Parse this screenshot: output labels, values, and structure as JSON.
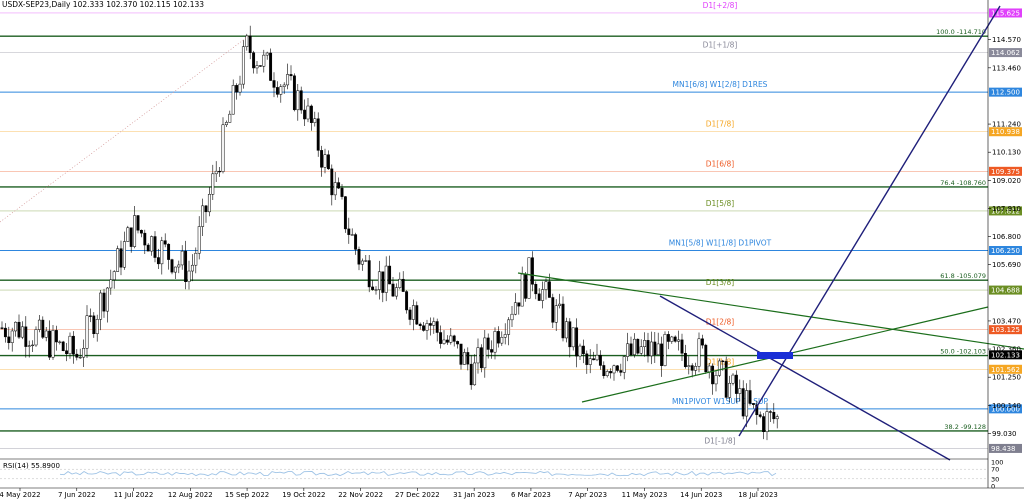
{
  "header": {
    "symbol_line": "USDX-SEP23,Daily  102.333 102.370 102.115 102.133"
  },
  "rsi": {
    "label": "RSI(14) 55.8900",
    "scale": [
      "100",
      "70",
      "30",
      "0"
    ]
  },
  "chart_data": {
    "type": "candlestick",
    "symbol": "USDX-SEP23",
    "timeframe": "Daily",
    "ohlc_last": {
      "open": 102.333,
      "high": 102.37,
      "low": 102.115,
      "close": 102.133
    },
    "ylim": [
      98.1,
      115.9
    ],
    "x_ticks": [
      "4 May 2022",
      "7 Jun 2022",
      "11 Jul 2022",
      "12 Aug 2022",
      "15 Sep 2022",
      "19 Oct 2022",
      "22 Nov 2022",
      "27 Dec 2022",
      "31 Jan 2023",
      "6 Mar 2023",
      "7 Apr 2023",
      "11 May 2023",
      "14 Jun 2023",
      "18 Jul 2023"
    ],
    "y_ticks": [
      "114.570",
      "113.460",
      "111.240",
      "110.130",
      "109.020",
      "107.910",
      "106.800",
      "105.690",
      "103.470",
      "102.360",
      "101.250",
      "100.140",
      "99.030"
    ],
    "close_path": [
      {
        "x": "4 May 2022",
        "y": 103.2
      },
      {
        "x": "7 Jun 2022",
        "y": 102.1
      },
      {
        "x": "11 Jul 2022",
        "y": 107.2
      },
      {
        "x": "12 Aug 2022",
        "y": 105.4
      },
      {
        "x": "15 Sep 2022",
        "y": 114.3
      },
      {
        "x": "19 Oct 2022",
        "y": 112.0
      },
      {
        "x": "22 Nov 2022",
        "y": 105.8
      },
      {
        "x": "27 Dec 2022",
        "y": 103.9
      },
      {
        "x": "31 Jan 2023",
        "y": 101.5
      },
      {
        "x": "6 Mar 2023",
        "y": 105.4
      },
      {
        "x": "7 Apr 2023",
        "y": 101.6
      },
      {
        "x": "11 May 2023",
        "y": 102.3
      },
      {
        "x": "14 Jun 2023",
        "y": 102.2
      },
      {
        "x": "18 Jul 2023",
        "y": 99.6
      }
    ],
    "horizontal_levels": [
      {
        "label": "D1[+2/8]",
        "price": 115.625,
        "badge": "115.625",
        "color": "#e040fb",
        "badge_text": "#ffffff"
      },
      {
        "label": "100.0 -114.710",
        "price": 114.71,
        "badge": "",
        "color": "#1b5e20",
        "badge_text": "#ffffff"
      },
      {
        "label": "D1[+1/8]",
        "price": 114.062,
        "badge": "114.062",
        "color": "#8a8a9a",
        "badge_text": "#ffffff"
      },
      {
        "label": "MN1[6/8] W1[2/8] D1RES",
        "price": 112.5,
        "badge": "112.500",
        "color": "#2e86de",
        "badge_text": "#ffffff"
      },
      {
        "label": "D1[7/8]",
        "price": 110.938,
        "badge": "110.938",
        "color": "#f5a623",
        "badge_text": "#ffffff"
      },
      {
        "label": "D1[6/8]",
        "price": 109.375,
        "badge": "109.375",
        "color": "#ee5a24",
        "badge_text": "#ffffff"
      },
      {
        "label": "76.4 -108.760",
        "price": 108.76,
        "badge": "",
        "color": "#1b5e20",
        "badge_text": "#ffffff"
      },
      {
        "label": "D1[5/8]",
        "price": 107.812,
        "badge": "107.812",
        "color": "#6b8e23",
        "badge_text": "#ffffff"
      },
      {
        "label": "MN1[5/8] W1[1/8] D1PIVOT",
        "price": 106.25,
        "badge": "106.250",
        "color": "#2e86de",
        "badge_text": "#ffffff"
      },
      {
        "label": "61.8 -105.079",
        "price": 105.079,
        "badge": "",
        "color": "#1b5e20",
        "badge_text": "#ffffff"
      },
      {
        "label": "D1[3/8]",
        "price": 104.688,
        "badge": "104.688",
        "color": "#6b8e23",
        "badge_text": "#ffffff"
      },
      {
        "label": "D1[2/8]",
        "price": 103.125,
        "badge": "103.125",
        "color": "#ee5a24",
        "badge_text": "#ffffff"
      },
      {
        "label": "50.0 -102.103",
        "price": 102.103,
        "badge": "",
        "color": "#1b5e20",
        "badge_text": "#ffffff"
      },
      {
        "label": "D1[1/8]",
        "price": 101.562,
        "badge": "101.562",
        "color": "#f5a623",
        "badge_text": "#ffffff"
      },
      {
        "label": "MN1PIVOT W1SUP D1SUP",
        "price": 100.0,
        "badge": "100.000",
        "color": "#2e86de",
        "badge_text": "#ffffff"
      },
      {
        "label": "38.2 -99.128",
        "price": 99.128,
        "badge": "",
        "color": "#1b5e20",
        "badge_text": "#ffffff"
      },
      {
        "label": "D1[-1/8]",
        "price": 98.438,
        "badge": "98.438",
        "color": "#7f7f8f",
        "badge_text": "#ffffff"
      }
    ],
    "current_price": {
      "value": "102.133",
      "color": "#000000"
    },
    "colors": {
      "trendline_navy": "#1f1f7a",
      "trendline_green": "#1b6e1b",
      "candle": "#000000",
      "rsi_line": "#9ec3e6",
      "marker": "#1a2fd6"
    }
  }
}
